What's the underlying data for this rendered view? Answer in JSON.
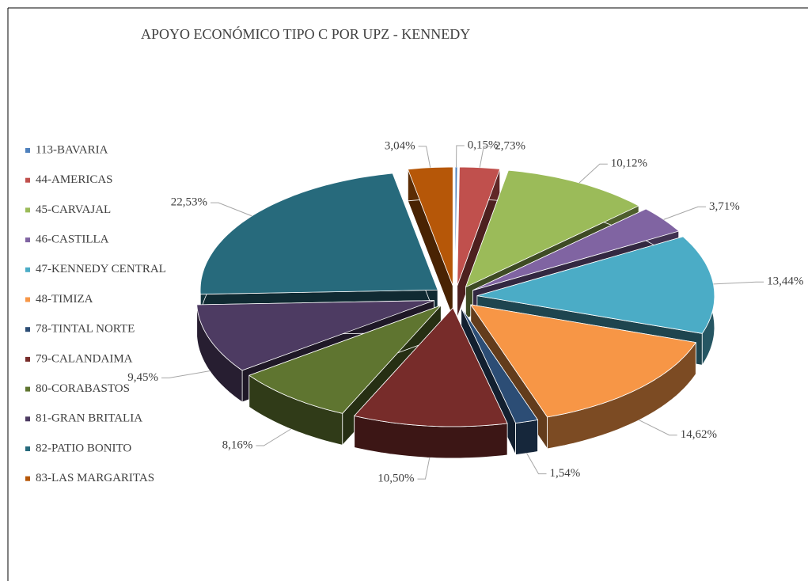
{
  "chart_data": {
    "type": "pie",
    "title": "APOYO ECONÓMICO TIPO C POR UPZ - KENNEDY",
    "categories": [
      "113-BAVARIA",
      "44-AMERICAS",
      "45-CARVAJAL",
      "46-CASTILLA",
      "47-KENNEDY CENTRAL",
      "48-TIMIZA",
      "78-TINTAL NORTE",
      "79-CALANDAIMA",
      "80-CORABASTOS",
      "81-GRAN BRITALIA",
      "82-PATIO BONITO",
      "83-LAS MARGARITAS"
    ],
    "values": [
      0.15,
      2.73,
      10.12,
      3.71,
      13.44,
      14.62,
      1.54,
      10.5,
      8.16,
      9.45,
      22.53,
      3.04
    ],
    "value_labels": [
      "0,15%",
      "2,73%",
      "10,12%",
      "3,71%",
      "13,44%",
      "14,62%",
      "1,54%",
      "10,50%",
      "8,16%",
      "9,45%",
      "22,53%",
      "3,04%"
    ],
    "colors": [
      "#4f81bd",
      "#c0504d",
      "#9bbb59",
      "#8064a2",
      "#4bacc6",
      "#f79646",
      "#2c4d75",
      "#772c2a",
      "#5f7530",
      "#4d3b62",
      "#276a7c",
      "#b65708"
    ],
    "legend": "left"
  }
}
